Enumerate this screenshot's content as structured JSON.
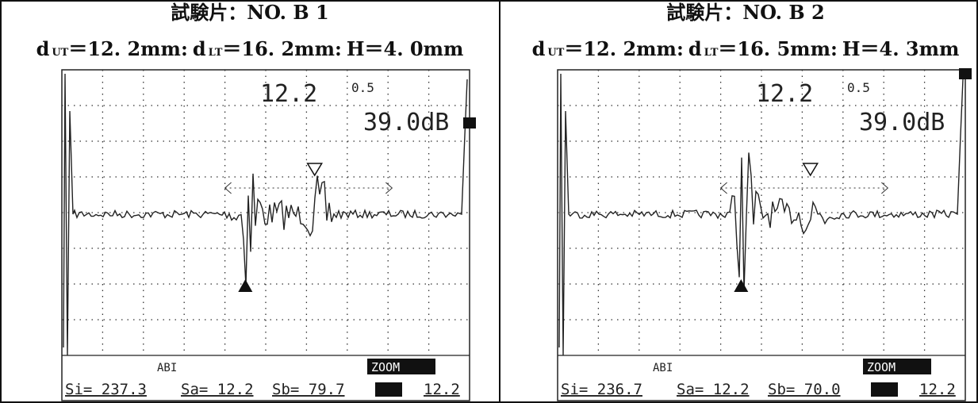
{
  "panels": [
    {
      "title": "試験片：NO. B 1",
      "params": [
        {
          "symbol": "d",
          "sub": "UT",
          "text": "＝12. 2mm:"
        },
        {
          "symbol": "d",
          "sub": "LT",
          "text": "＝16. 2mm:"
        },
        {
          "text": "H＝4. 0mm"
        }
      ],
      "screen": {
        "depth": "12.2",
        "gain_step": "0.5",
        "gain": "39.0dB",
        "zoom": "ZOOM",
        "icons": "ABI",
        "readout": [
          "Si= 237.3",
          "Sa= 12.2",
          "Sb= 79.7",
          "12.2"
        ]
      }
    },
    {
      "title": "試験片：NO. B 2",
      "params": [
        {
          "symbol": "d",
          "sub": "UT",
          "text": "＝12. 2mm:"
        },
        {
          "symbol": "d",
          "sub": "LT",
          "text": "＝16. 5mm:"
        },
        {
          "text": "H＝4. 3mm"
        }
      ],
      "screen": {
        "depth": "12.2",
        "gain_step": "0.5",
        "gain": "39.0dB",
        "zoom": "ZOOM",
        "icons": "ABI",
        "readout": [
          "Si= 236.7",
          "Sa= 12.2",
          "Sb= 70.0",
          "12.2"
        ]
      }
    }
  ]
}
